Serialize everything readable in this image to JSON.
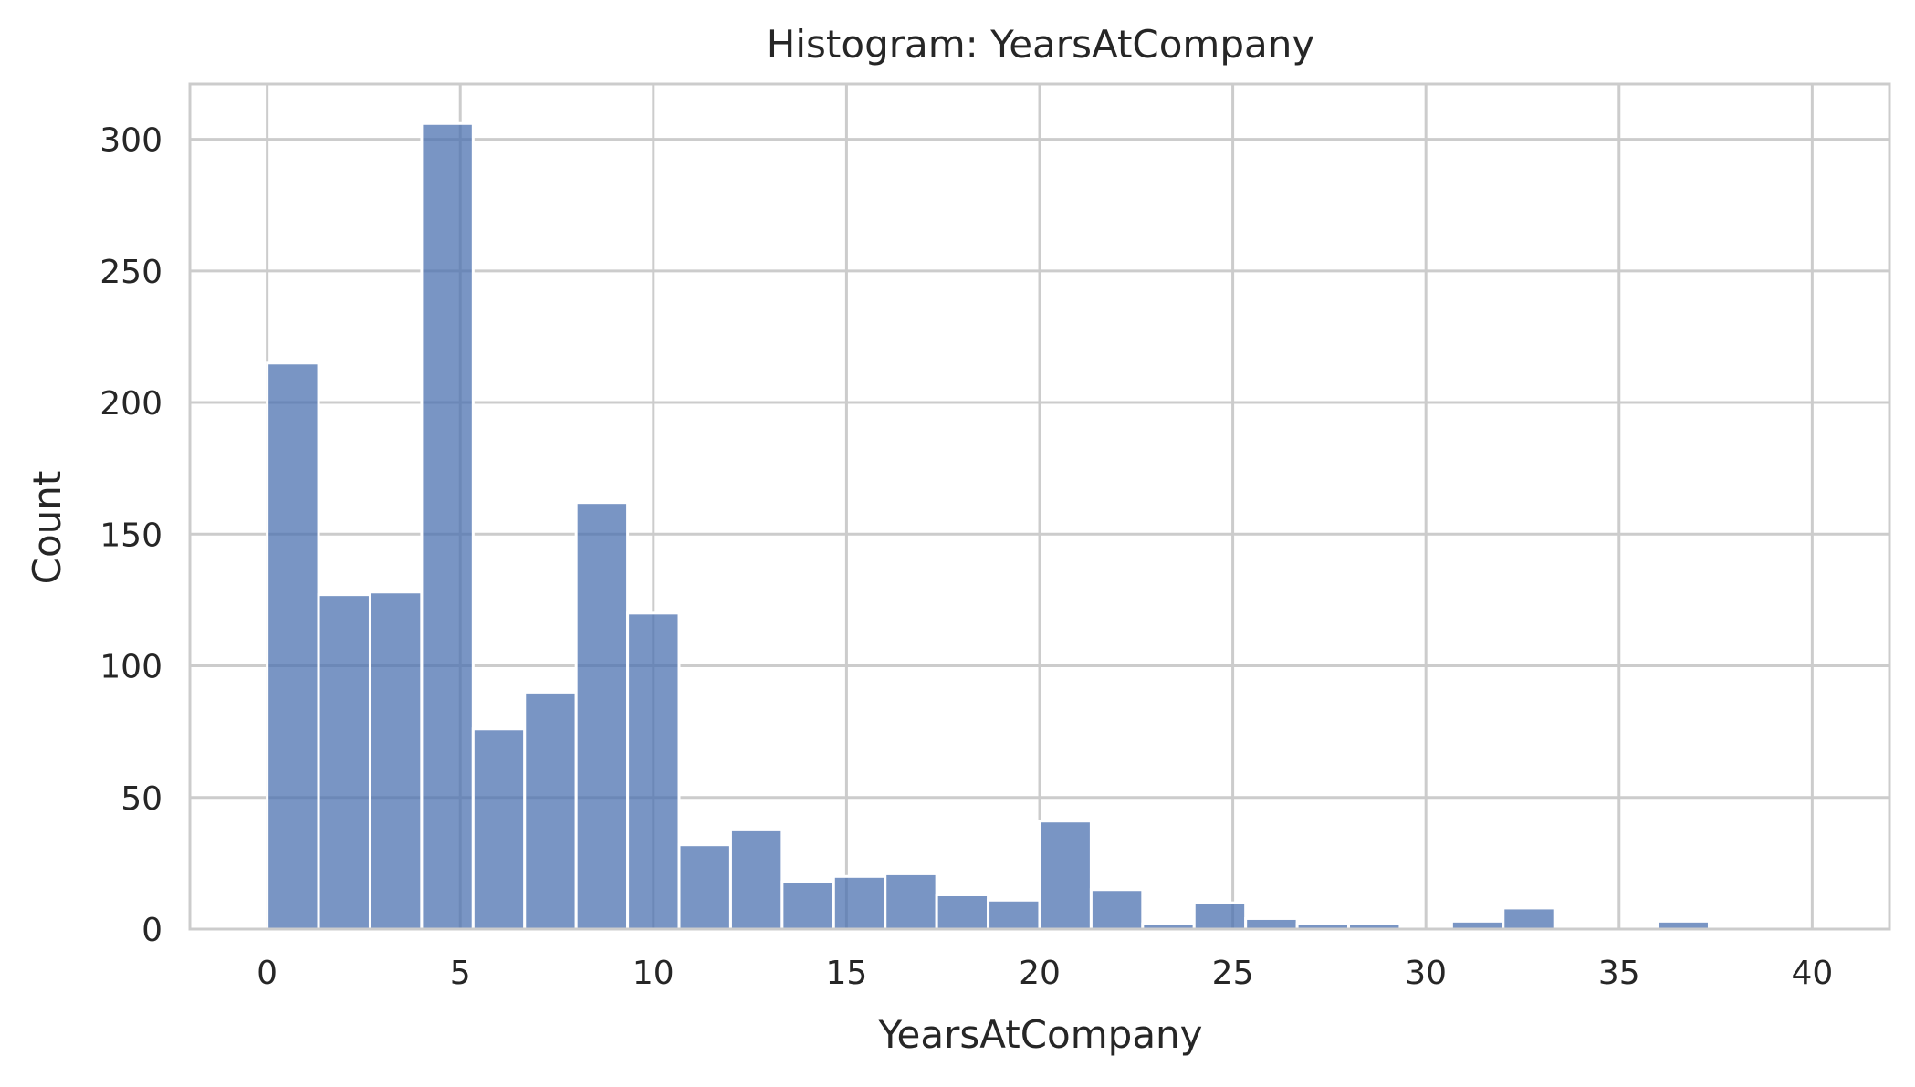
{
  "chart_data": {
    "type": "bar",
    "title": "Histogram: YearsAtCompany",
    "xlabel": "YearsAtCompany",
    "ylabel": "Count",
    "xlim": [
      -2.0,
      42.0
    ],
    "ylim": [
      0,
      321
    ],
    "xticks": [
      0,
      5,
      10,
      15,
      20,
      25,
      30,
      35,
      40
    ],
    "yticks": [
      0,
      50,
      100,
      150,
      200,
      250,
      300
    ],
    "grid": true,
    "bin_width": 1.3333,
    "bin_start": 0,
    "values": [
      215,
      127,
      128,
      306,
      76,
      90,
      162,
      120,
      32,
      38,
      18,
      20,
      21,
      13,
      11,
      41,
      15,
      2,
      10,
      4,
      2,
      2,
      0,
      3,
      8,
      0,
      0,
      3,
      0,
      0
    ],
    "bar_color": "#4c72b0",
    "grid_color": "#cccccc",
    "spine_color": "#cccccc"
  }
}
